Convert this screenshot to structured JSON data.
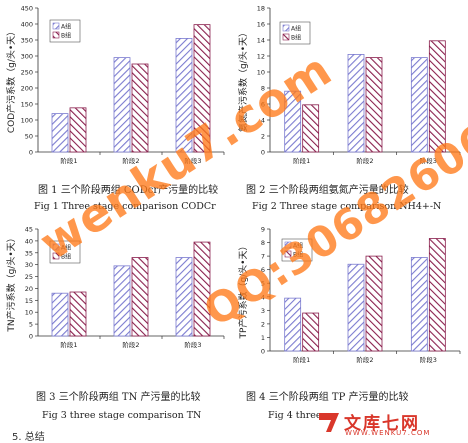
{
  "chart_data": [
    {
      "type": "bar",
      "ylabel": "COD产污系数（g/头•天）",
      "categories": [
        "阶段1",
        "阶段2",
        "阶段3"
      ],
      "yticks": [
        0,
        50,
        100,
        150,
        200,
        250,
        300,
        350,
        400,
        450
      ],
      "ylim": [
        0,
        450
      ],
      "series": [
        {
          "name": "A组",
          "values": [
            120,
            295,
            355
          ]
        },
        {
          "name": "B组",
          "values": [
            138,
            275,
            398
          ]
        }
      ],
      "legend": "top-left",
      "caption_cn": "图 1 三个阶段两组 CODcr产污量的比较",
      "caption_en": "Fig 1 Three stage comparison CODCr"
    },
    {
      "type": "bar",
      "ylabel": "氨氮产污系数（g/头•天）",
      "categories": [
        "阶段1",
        "阶段2",
        "阶段3"
      ],
      "yticks": [
        0,
        2,
        4,
        6,
        8,
        10,
        12,
        14,
        16,
        18
      ],
      "ylim": [
        0,
        18
      ],
      "series": [
        {
          "name": "A组",
          "values": [
            7.6,
            12.2,
            11.8
          ]
        },
        {
          "name": "B组",
          "values": [
            5.9,
            11.8,
            13.9
          ]
        }
      ],
      "legend": "top-left",
      "caption_cn": "图 2 三个阶段两组氨氮产污量的比较",
      "caption_en": "Fig 2 Three stage comparison NH4+-N"
    },
    {
      "type": "bar",
      "ylabel": "TN产污系数（g/头•天）",
      "categories": [
        "阶段1",
        "阶段2",
        "阶段3"
      ],
      "yticks": [
        0,
        5,
        10,
        15,
        20,
        25,
        30,
        35,
        40,
        45
      ],
      "ylim": [
        0,
        45
      ],
      "series": [
        {
          "name": "A组",
          "values": [
            18,
            29.5,
            33
          ]
        },
        {
          "name": "B组",
          "values": [
            18.5,
            33,
            39.5
          ]
        }
      ],
      "legend": "top-left",
      "caption_cn": "图 3 三个阶段两组 TN 产污量的比较",
      "caption_en": "Fig 3 three stage comparison TN"
    },
    {
      "type": "bar",
      "ylabel": "TP产污系数（g/头•天）",
      "categories": [
        "阶段1",
        "阶段2",
        "阶段3"
      ],
      "yticks": [
        0,
        1,
        2,
        3,
        4,
        5,
        6,
        7,
        8,
        9
      ],
      "ylim": [
        0,
        9
      ],
      "series": [
        {
          "name": "A组",
          "values": [
            3.9,
            6.4,
            6.9
          ]
        },
        {
          "name": "B组",
          "values": [
            2.8,
            7.0,
            8.3
          ]
        }
      ],
      "legend": "top-left",
      "caption_cn": "图 4 三个阶段两组 TP 产污量的比较",
      "caption_en": "Fig 4 three"
    }
  ],
  "watermarks": {
    "site": "wenku7.com",
    "qq": "QQ:306826066",
    "logo_cn": "文库七网",
    "logo_en": "WWW.WENKU7.COM"
  },
  "footer": "5. 总结",
  "colors": {
    "series_a": "#7b7bd0",
    "series_b": "#8a1f4d",
    "watermark_orange": "#ff7a1a",
    "logo_red": "#d9372b"
  }
}
